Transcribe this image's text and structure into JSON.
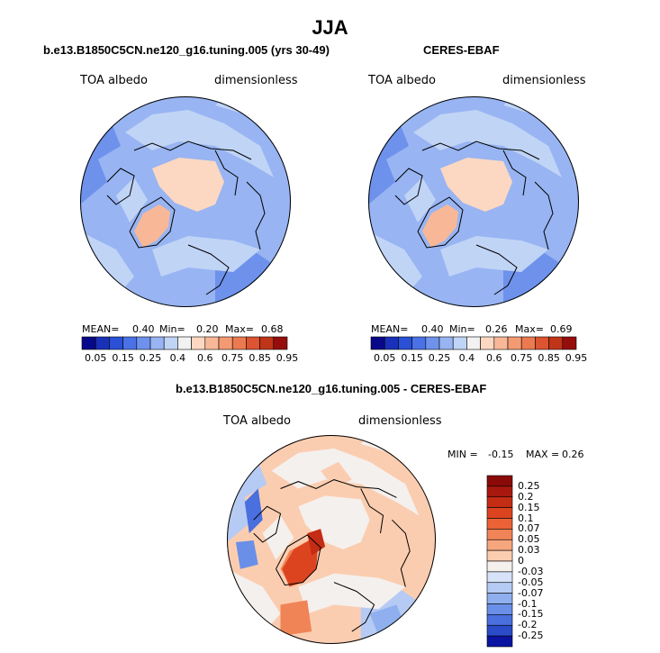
{
  "figure": {
    "title": "JJA",
    "bottom_title": "b.e13.B1850C5CN.ne120_g16.tuning.005 - CERES-EBAF"
  },
  "chart_data": [
    {
      "type": "polar-map",
      "title": "b.e13.B1850C5CN.ne120_g16.tuning.005 (yrs 30-49)",
      "left_label": "TOA albedo",
      "right_label": "dimensionless",
      "stats": {
        "mean_label": "MEAN=",
        "mean": "0.40",
        "min_label": "Min=",
        "min": "0.20",
        "max_label": "Max=",
        "max": "0.68"
      },
      "colorbar": {
        "orientation": "horizontal",
        "tick_labels": [
          "0.05",
          "0.15",
          "0.25",
          "0.4",
          "0.6",
          "0.75",
          "0.85",
          "0.95"
        ],
        "colors": [
          "#08088a",
          "#1a30b8",
          "#2a50d6",
          "#4a72e6",
          "#6e92ec",
          "#98b4f2",
          "#c0d4f6",
          "#f2f2f2",
          "#fcd8c2",
          "#f8b898",
          "#f49a72",
          "#ec7a50",
          "#dc5430",
          "#c03418",
          "#960e0c"
        ]
      }
    },
    {
      "type": "polar-map",
      "title": "CERES-EBAF",
      "left_label": "TOA albedo",
      "right_label": "dimensionless",
      "stats": {
        "mean_label": "MEAN=",
        "mean": "0.40",
        "min_label": "Min=",
        "min": "0.26",
        "max_label": "Max=",
        "max": "0.69"
      },
      "colorbar": {
        "orientation": "horizontal",
        "tick_labels": [
          "0.05",
          "0.15",
          "0.25",
          "0.4",
          "0.6",
          "0.75",
          "0.85",
          "0.95"
        ],
        "colors": [
          "#08088a",
          "#1a30b8",
          "#2a50d6",
          "#4a72e6",
          "#6e92ec",
          "#98b4f2",
          "#c0d4f6",
          "#f2f2f2",
          "#fcd8c2",
          "#f8b898",
          "#f49a72",
          "#ec7a50",
          "#dc5430",
          "#c03418",
          "#960e0c"
        ]
      }
    },
    {
      "type": "polar-map",
      "title": "",
      "left_label": "TOA albedo",
      "right_label": "dimensionless",
      "stats": {
        "min_label": "MIN =",
        "min": "-0.15",
        "max_label": "MAX =",
        "max": "0.26"
      },
      "colorbar": {
        "orientation": "vertical",
        "tick_labels": [
          "0.25",
          "0.2",
          "0.15",
          "0.1",
          "0.07",
          "0.05",
          "0.03",
          "0",
          "-0.03",
          "-0.05",
          "-0.07",
          "-0.1",
          "-0.15",
          "-0.2",
          "-0.25"
        ],
        "colors": [
          "#8a0a08",
          "#a8180e",
          "#c42c14",
          "#dc4420",
          "#ea6236",
          "#f08456",
          "#f6a67c",
          "#fbcdb0",
          "#f4f0ee",
          "#d6e2f8",
          "#b6cbf3",
          "#8fafee",
          "#6a8fe8",
          "#4a6fde",
          "#2a4cc8",
          "#0a14a0"
        ]
      }
    }
  ]
}
